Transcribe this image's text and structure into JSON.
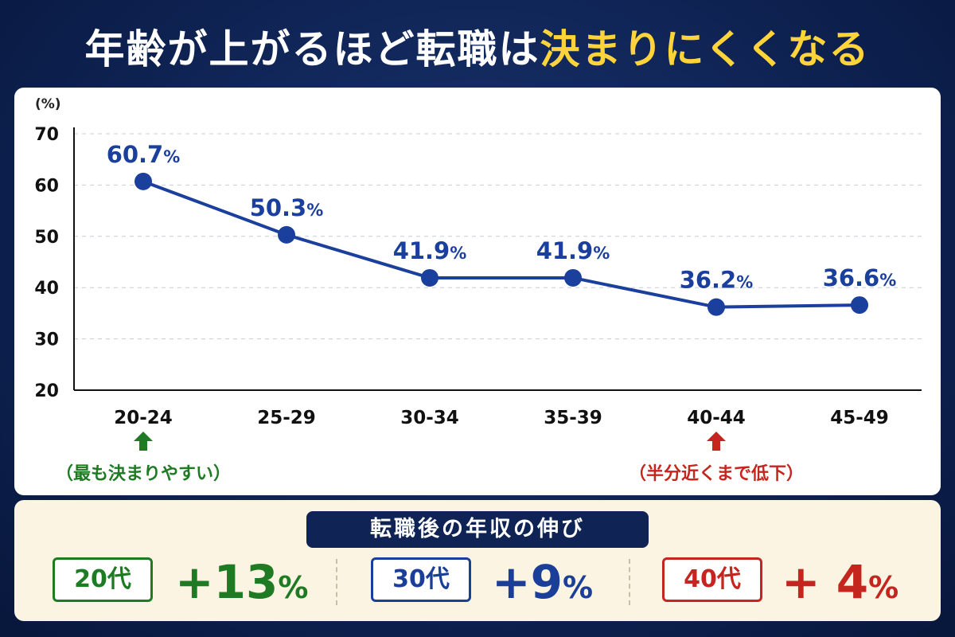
{
  "title": {
    "part1": "年齢が上がるほど転職は",
    "part2": "決まりにくくなる"
  },
  "chart_data": {
    "type": "line",
    "categories": [
      "20-24",
      "25-29",
      "30-34",
      "35-39",
      "40-44",
      "45-49"
    ],
    "values": [
      60.7,
      50.3,
      41.9,
      41.9,
      36.2,
      36.6
    ],
    "value_labels": [
      "60.7",
      "50.3",
      "41.9",
      "41.9",
      "36.2",
      "36.6"
    ],
    "value_suffix": "%",
    "ylabel": "(%)",
    "ylim": [
      20,
      70
    ],
    "yticks": [
      20,
      30,
      40,
      50,
      60,
      70
    ],
    "grid": true,
    "line_color": "#1b3f9c",
    "annotations": [
      {
        "category": "20-24",
        "text": "（最も決まりやすい）",
        "arrow": "up",
        "color": "#1f7a24"
      },
      {
        "category": "40-44",
        "text": "（半分近くまで低下）",
        "arrow": "up",
        "color": "#c4261f"
      }
    ]
  },
  "salary": {
    "title": "転職後の年収の伸び",
    "groups": [
      {
        "label": "20代",
        "value": "+13",
        "unit": "%",
        "color": "#1f7a24"
      },
      {
        "label": "30代",
        "value": "+9",
        "unit": "%",
        "color": "#1b3f99"
      },
      {
        "label": "40代",
        "value": "+ 4",
        "unit": "%",
        "color": "#c4261f"
      }
    ]
  }
}
